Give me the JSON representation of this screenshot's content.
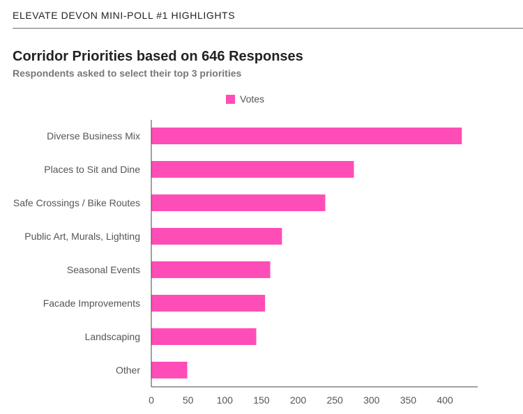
{
  "header": {
    "text": "ELEVATE DEVON MINI-POLL #1 HIGHLIGHTS"
  },
  "chart_data": {
    "type": "bar",
    "orientation": "horizontal",
    "title": "Corridor Priorities based on 646 Responses",
    "subtitle": "Respondents asked to select their top 3 priorities",
    "legend": {
      "label": "Votes",
      "position": "top-center"
    },
    "categories": [
      "Diverse Business Mix",
      "Places to Sit and Dine",
      "Safe Crossings / Bike Routes",
      "Public Art, Murals, Lighting",
      "Seasonal Events",
      "Facade Improvements",
      "Landscaping",
      "Other"
    ],
    "series": [
      {
        "name": "Votes",
        "color": "#ff4db8",
        "values": [
          423,
          276,
          237,
          178,
          162,
          155,
          143,
          49
        ]
      }
    ],
    "xlim": [
      0,
      440
    ],
    "xticks": [
      0,
      50,
      100,
      150,
      200,
      250,
      300,
      350,
      400
    ],
    "grid": false
  }
}
